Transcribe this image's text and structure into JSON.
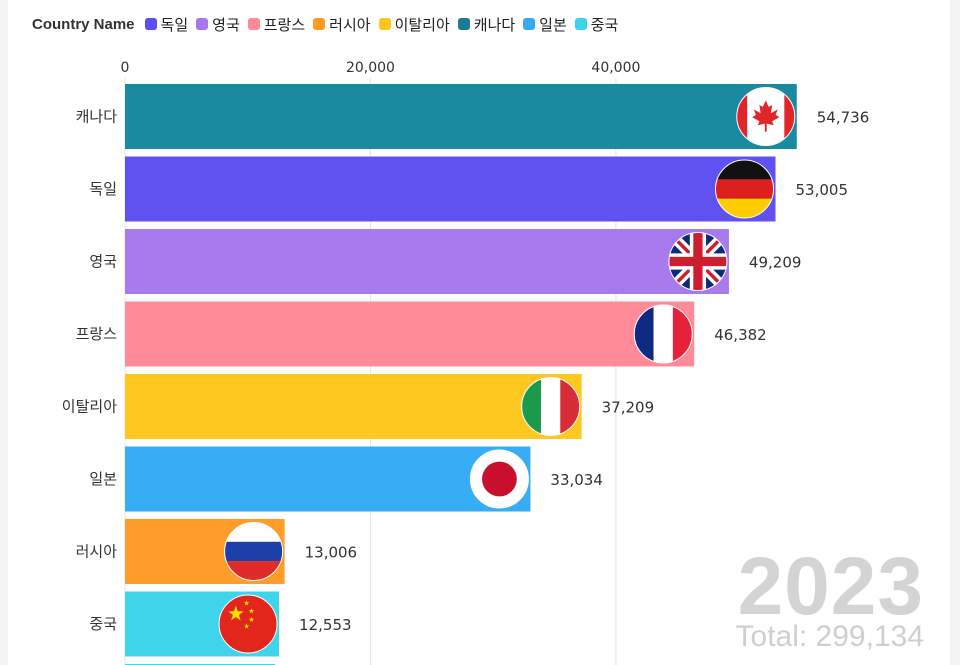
{
  "legend": {
    "title": "Country Name",
    "items": [
      {
        "label": "독일",
        "color": "#5a4fee"
      },
      {
        "label": "영국",
        "color": "#a577ec"
      },
      {
        "label": "프랑스",
        "color": "#ff8899"
      },
      {
        "label": "러시아",
        "color": "#ff9a26"
      },
      {
        "label": "이탈리아",
        "color": "#ffc61f"
      },
      {
        "label": "캐나다",
        "color": "#1a7d91"
      },
      {
        "label": "일본",
        "color": "#35aaf3"
      },
      {
        "label": "중국",
        "color": "#3dd3e8"
      }
    ]
  },
  "chart_data": {
    "type": "bar",
    "orientation": "horizontal",
    "categories": [
      "캐나다",
      "독일",
      "영국",
      "프랑스",
      "이탈리아",
      "일본",
      "러시아",
      "중국"
    ],
    "values": [
      54736,
      53005,
      49209,
      46382,
      37209,
      33034,
      13006,
      12553
    ],
    "value_labels": [
      "54,736",
      "53,005",
      "49,209",
      "46,382",
      "37,209",
      "33,034",
      "13,006",
      "12,553"
    ],
    "colors": [
      "#1a8aa0",
      "#5f52f1",
      "#a77bee",
      "#ff8a98",
      "#ffc820",
      "#36adf4",
      "#ff9d2b",
      "#3fd4ea"
    ],
    "flag_icons": [
      "canada-flag-icon",
      "germany-flag-icon",
      "uk-flag-icon",
      "france-flag-icon",
      "italy-flag-icon",
      "japan-flag-icon",
      "russia-flag-icon",
      "china-flag-icon"
    ],
    "x_ticks": [
      0,
      20000,
      40000
    ],
    "x_tick_labels": [
      "0",
      "20,000",
      "40,000"
    ],
    "xlim": [
      0,
      55000
    ],
    "grid": true,
    "legend_position": "top-left"
  },
  "year": "2023",
  "total": "Total: 299,134"
}
